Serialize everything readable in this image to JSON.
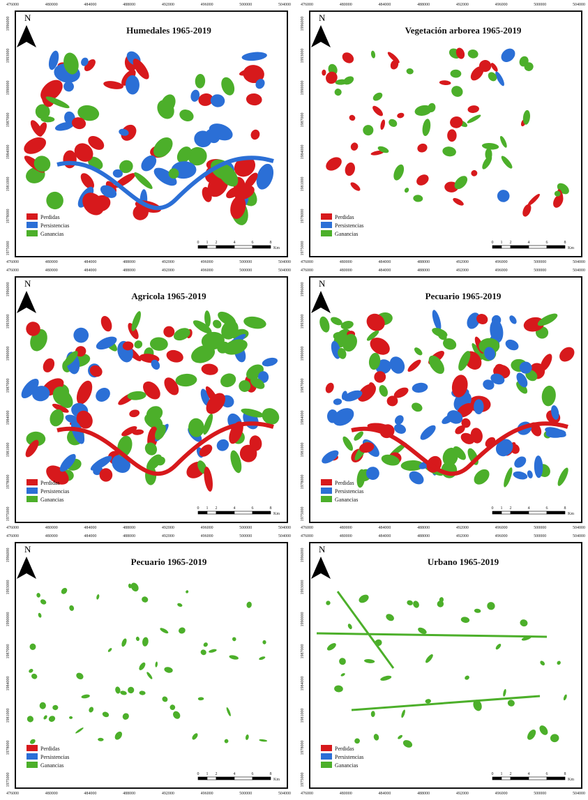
{
  "axes": {
    "x_labels": [
      "476000",
      "480000",
      "484000",
      "488000",
      "492000",
      "496000",
      "500000",
      "504000"
    ],
    "y_labels": [
      "1975000",
      "1978000",
      "1981000",
      "1984000",
      "1987000",
      "1990000",
      "1993000",
      "1996000"
    ]
  },
  "north": "N",
  "scale_labels": [
    "0",
    "1",
    "2",
    "4",
    "6",
    "8",
    "Km"
  ],
  "legend": [
    {
      "label": "Perdidas",
      "color": "#d7191c"
    },
    {
      "label": "Persistencias",
      "color": "#2b6fd6"
    },
    {
      "label": "Ganancias",
      "color": "#4caf2a"
    }
  ],
  "panels": [
    {
      "title": "Humedales 1965-2019"
    },
    {
      "title": "Vegetación arborea 1965-2019"
    },
    {
      "title": "Agricola 1965-2019"
    },
    {
      "title": "Pecuario 1965-2019"
    },
    {
      "title": "Pecuario 1965-2019"
    },
    {
      "title": "Urbano 1965-2019"
    }
  ]
}
